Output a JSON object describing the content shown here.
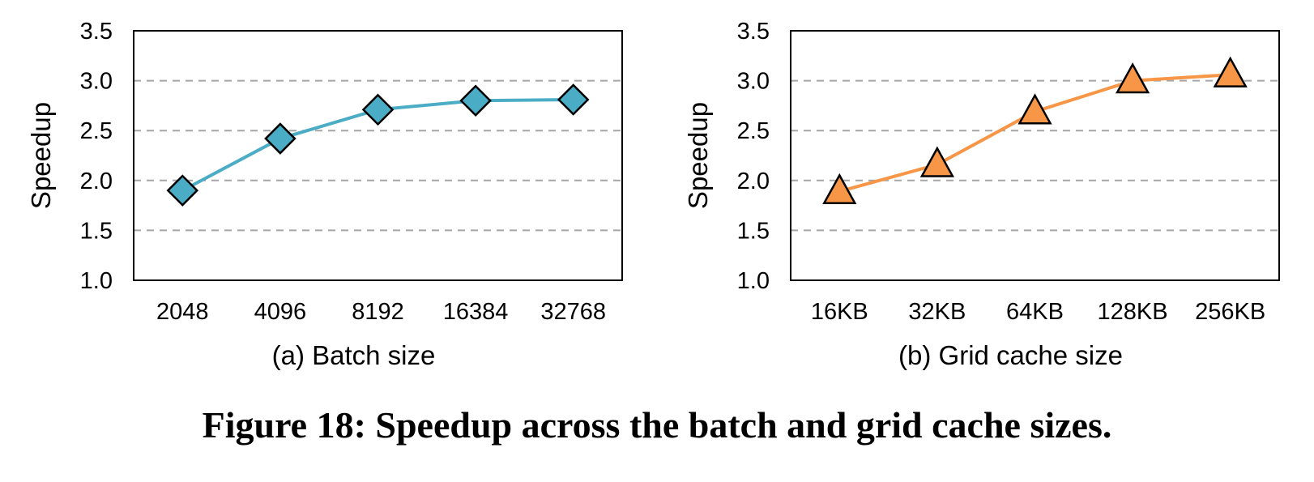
{
  "figure_caption": "Figure 18: Speedup across the batch and grid cache sizes.",
  "chart_data": [
    {
      "type": "line",
      "caption": "(a) Batch size",
      "xlabel": "",
      "ylabel": "Speedup",
      "categories": [
        "2048",
        "4096",
        "8192",
        "16384",
        "32768"
      ],
      "series": [
        {
          "values": [
            1.9,
            2.42,
            2.71,
            2.8,
            2.81
          ],
          "color": "#4bacc6",
          "marker": "diamond"
        }
      ],
      "ylim": [
        1.0,
        3.5
      ],
      "yticks": [
        "1.0",
        "1.5",
        "2.0",
        "2.5",
        "3.0",
        "3.5"
      ],
      "grid": "horizontal-dashed",
      "legend": "none"
    },
    {
      "type": "line",
      "caption": "(b) Grid cache size",
      "xlabel": "",
      "ylabel": "Speedup",
      "categories": [
        "16KB",
        "32KB",
        "64KB",
        "128KB",
        "256KB"
      ],
      "series": [
        {
          "values": [
            1.89,
            2.16,
            2.69,
            3.0,
            3.06
          ],
          "color": "#f79646",
          "marker": "triangle"
        }
      ],
      "ylim": [
        1.0,
        3.5
      ],
      "yticks": [
        "1.0",
        "1.5",
        "2.0",
        "2.5",
        "3.0",
        "3.5"
      ],
      "grid": "horizontal-dashed",
      "legend": "none"
    }
  ]
}
